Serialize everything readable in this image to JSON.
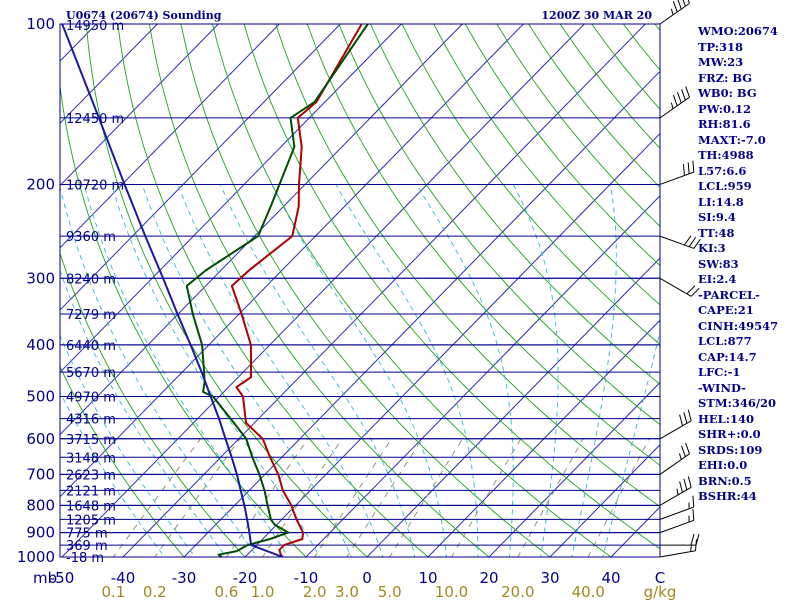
{
  "header": {
    "station": "U0674 (20674) Sounding",
    "time": "1200Z 30 MAR 20"
  },
  "indices": [
    "WMO:20674",
    "TP:318",
    "MW:23",
    "FRZ: BG",
    "WB0: BG",
    "PW:0.12",
    "RH:81.6",
    "MAXT:-7.0",
    "TH:4988",
    "L57:6.6",
    "LCL:959",
    "LI:14.8",
    "SI:9.4",
    "TT:48",
    "KI:3",
    "SW:83",
    "EI:2.4",
    "-PARCEL-",
    "CAPE:21",
    "CINH:49547",
    "LCL:877",
    "CAP:14.7",
    "LFC:-1",
    "-WIND-",
    "STM:346/20",
    "HEL:140",
    "SHR+:0.0",
    "SRDS:109",
    "EHI:0.0",
    "BRN:0.5",
    "BSHR:44"
  ],
  "colors": {
    "isobar": "#00008b",
    "isotherm": "#2b2bb8",
    "dry_adiabat": "#1aa51a",
    "moist_adiabat": "#30b8d8",
    "mixing_ratio": "#8a8a6a",
    "temperature": "#b00000",
    "dewpoint": "#004d00",
    "parcel": "#1a1aa0",
    "text": "#00008b",
    "mixing_label": "#a08a1e"
  },
  "chart_data": {
    "type": "line",
    "title": "U0674 (20674) Sounding",
    "subtitle": "1200Z 30 MAR 20",
    "xlabel": "",
    "ylabel": "mb",
    "x_unit": "C",
    "y_scale": "log",
    "ylim": [
      1000,
      100
    ],
    "xlim": [
      -50,
      50
    ],
    "isobars": [
      100,
      200,
      300,
      400,
      500,
      600,
      700,
      800,
      900,
      1000
    ],
    "pressure_tick_labels": [
      "100",
      "200",
      "300",
      "400",
      "500",
      "600",
      "700",
      "800",
      "900",
      "1000"
    ],
    "temperature_ticks": [
      "-50",
      "-40",
      "-30",
      "-20",
      "-10",
      "0",
      "10",
      "20",
      "30",
      "40"
    ],
    "temperature_tick_values": [
      -50,
      -40,
      -30,
      -20,
      -10,
      0,
      10,
      20,
      30,
      40
    ],
    "mixing_ratio_labels": [
      "0.1",
      "0.2",
      "0.6",
      "1.0",
      "2.0",
      "3.0",
      "5.0",
      "10.0",
      "20.0",
      "40.0"
    ],
    "mixing_ratio_values": [
      0.1,
      0.2,
      0.6,
      1.0,
      2.0,
      3.0,
      5.0,
      10.0,
      20.0,
      40.0
    ],
    "mixing_ratio_unit": "g/kg",
    "grid": true,
    "height_levels": [
      {
        "label": "14950 m",
        "p": 100
      },
      {
        "label": "12450 m",
        "p": 150
      },
      {
        "label": "10720 m",
        "p": 200
      },
      {
        "label": "9360 m",
        "p": 250
      },
      {
        "label": "8240 m",
        "p": 300
      },
      {
        "label": "7279 m",
        "p": 350
      },
      {
        "label": "6440 m",
        "p": 400
      },
      {
        "label": "5670 m",
        "p": 450
      },
      {
        "label": "4970 m",
        "p": 500
      },
      {
        "label": "4316 m",
        "p": 550
      },
      {
        "label": "3715 m",
        "p": 600
      },
      {
        "label": "3148 m",
        "p": 650
      },
      {
        "label": "2623 m",
        "p": 700
      },
      {
        "label": "2121 m",
        "p": 750
      },
      {
        "label": "1648 m",
        "p": 800
      },
      {
        "label": "1205 m",
        "p": 850
      },
      {
        "label": "775 m",
        "p": 900
      },
      {
        "label": "369 m",
        "p": 950
      },
      {
        "label": "-18 m",
        "p": 1000
      }
    ],
    "series": [
      {
        "role": "temperature",
        "points": [
          [
            1000,
            -13.8
          ],
          [
            990,
            -14.5
          ],
          [
            970,
            -15.5
          ],
          [
            950,
            -15.5
          ],
          [
            925,
            -13.5
          ],
          [
            900,
            -14.4
          ],
          [
            850,
            -17.6
          ],
          [
            800,
            -20.7
          ],
          [
            750,
            -24.5
          ],
          [
            700,
            -27.8
          ],
          [
            650,
            -31.9
          ],
          [
            600,
            -36.1
          ],
          [
            560,
            -41.4
          ],
          [
            500,
            -46.1
          ],
          [
            480,
            -48.7
          ],
          [
            460,
            -47.9
          ],
          [
            430,
            -50.4
          ],
          [
            400,
            -53.1
          ],
          [
            350,
            -59.6
          ],
          [
            310,
            -65.7
          ],
          [
            290,
            -65.4
          ],
          [
            250,
            -63.8
          ],
          [
            220,
            -67.5
          ],
          [
            200,
            -71.0
          ],
          [
            170,
            -76.6
          ],
          [
            150,
            -81.9
          ],
          [
            140,
            -81.4
          ],
          [
            100,
            -86.5
          ]
        ]
      },
      {
        "role": "dewpoint",
        "points": [
          [
            1000,
            -23.8
          ],
          [
            990,
            -24.7
          ],
          [
            975,
            -22.3
          ],
          [
            950,
            -21.5
          ],
          [
            925,
            -18.8
          ],
          [
            900,
            -16.8
          ],
          [
            870,
            -20.3
          ],
          [
            850,
            -21.8
          ],
          [
            800,
            -24.6
          ],
          [
            750,
            -27.5
          ],
          [
            700,
            -30.9
          ],
          [
            650,
            -34.8
          ],
          [
            600,
            -38.8
          ],
          [
            560,
            -43.4
          ],
          [
            500,
            -51.0
          ],
          [
            490,
            -53.4
          ],
          [
            470,
            -54.7
          ],
          [
            450,
            -56.4
          ],
          [
            400,
            -61.1
          ],
          [
            350,
            -67.6
          ],
          [
            310,
            -73.1
          ],
          [
            290,
            -72.5
          ],
          [
            250,
            -69.4
          ],
          [
            220,
            -72.1
          ],
          [
            200,
            -74.2
          ],
          [
            170,
            -77.8
          ],
          [
            150,
            -83.1
          ],
          [
            140,
            -81.7
          ],
          [
            100,
            -85.5
          ]
        ]
      },
      {
        "role": "parcel",
        "points": [
          [
            1000,
            -13.8
          ],
          [
            950,
            -20.9
          ],
          [
            900,
            -23.2
          ],
          [
            850,
            -25.7
          ],
          [
            800,
            -28.4
          ],
          [
            750,
            -31.4
          ],
          [
            700,
            -34.6
          ],
          [
            650,
            -38.2
          ],
          [
            600,
            -42.2
          ],
          [
            550,
            -46.5
          ],
          [
            500,
            -51.4
          ],
          [
            450,
            -56.8
          ],
          [
            400,
            -63.0
          ],
          [
            350,
            -70.1
          ],
          [
            300,
            -78.2
          ],
          [
            250,
            -87.9
          ],
          [
            200,
            -99.6
          ],
          [
            150,
            -114.5
          ],
          [
            100,
            -135.6
          ]
        ]
      }
    ],
    "wind_barbs": [
      {
        "p": 100,
        "dir": 235,
        "kt": 45
      },
      {
        "p": 150,
        "dir": 235,
        "kt": 45
      },
      {
        "p": 200,
        "dir": 250,
        "kt": 30
      },
      {
        "p": 250,
        "dir": 290,
        "kt": 30
      },
      {
        "p": 300,
        "dir": 300,
        "kt": 20
      },
      {
        "p": 600,
        "dir": 240,
        "kt": 30
      },
      {
        "p": 700,
        "dir": 235,
        "kt": 25
      },
      {
        "p": 800,
        "dir": 240,
        "kt": 35
      },
      {
        "p": 850,
        "dir": 250,
        "kt": 15
      },
      {
        "p": 900,
        "dir": 250,
        "kt": 15
      },
      {
        "p": 950,
        "dir": 270,
        "kt": 20
      },
      {
        "p": 1000,
        "dir": 260,
        "kt": 15
      }
    ]
  }
}
